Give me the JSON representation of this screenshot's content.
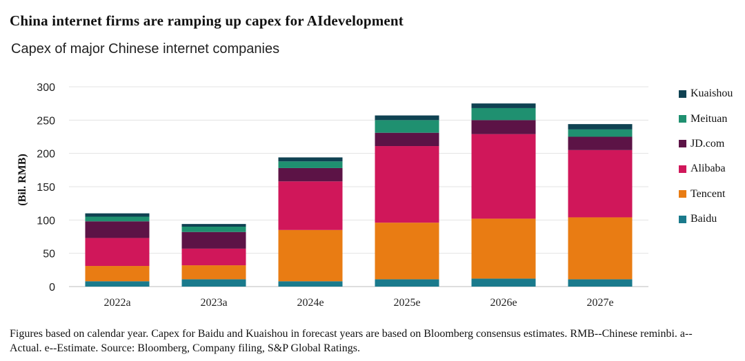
{
  "header": {
    "title": "China internet  firms  are  ramping  up capex  for  AIdevelopment",
    "subtitle": "Capex  of major  Chinese  internet   companies"
  },
  "footnote": "Figures  based  on calendar  year.  Capex  for  Baidu  and  Kuaishou  in forecast  years  are  based  on Bloomberg  consensus estimates.  RMB--Chinese  reminbi.  a--Actual.  e--Estimate.  Source:  Bloomberg,  Company  filing,  S&P Global Ratings.",
  "chart_data": {
    "type": "bar",
    "stacked": true,
    "title": "Capex  of major  Chinese  internet   companies",
    "xlabel": "",
    "ylabel": "(Bil. RMB)",
    "ylim": [
      0,
      300
    ],
    "yticks": [
      0,
      50,
      100,
      150,
      200,
      250,
      300
    ],
    "grid": true,
    "legend_position": "right",
    "categories": [
      "2022a",
      "2023a",
      "2024e",
      "2025e",
      "2026e",
      "2027e"
    ],
    "series": [
      {
        "name": "Baidu",
        "color": "#1a7a8c",
        "values": [
          8,
          11,
          8,
          11,
          12,
          11
        ]
      },
      {
        "name": "Tencent",
        "color": "#e97c13",
        "values": [
          23,
          21,
          77,
          85,
          90,
          93
        ]
      },
      {
        "name": "Alibaba",
        "color": "#d0175a",
        "values": [
          42,
          25,
          73,
          115,
          127,
          101
        ]
      },
      {
        "name": "JD.com",
        "color": "#5c1346",
        "values": [
          25,
          25,
          20,
          20,
          21,
          20
        ]
      },
      {
        "name": "Meituan",
        "color": "#1f9070",
        "values": [
          7,
          8,
          10,
          19,
          18,
          11
        ]
      },
      {
        "name": "Kuaishou",
        "color": "#0f4252",
        "values": [
          5,
          4,
          6,
          7,
          7,
          8
        ]
      }
    ]
  }
}
